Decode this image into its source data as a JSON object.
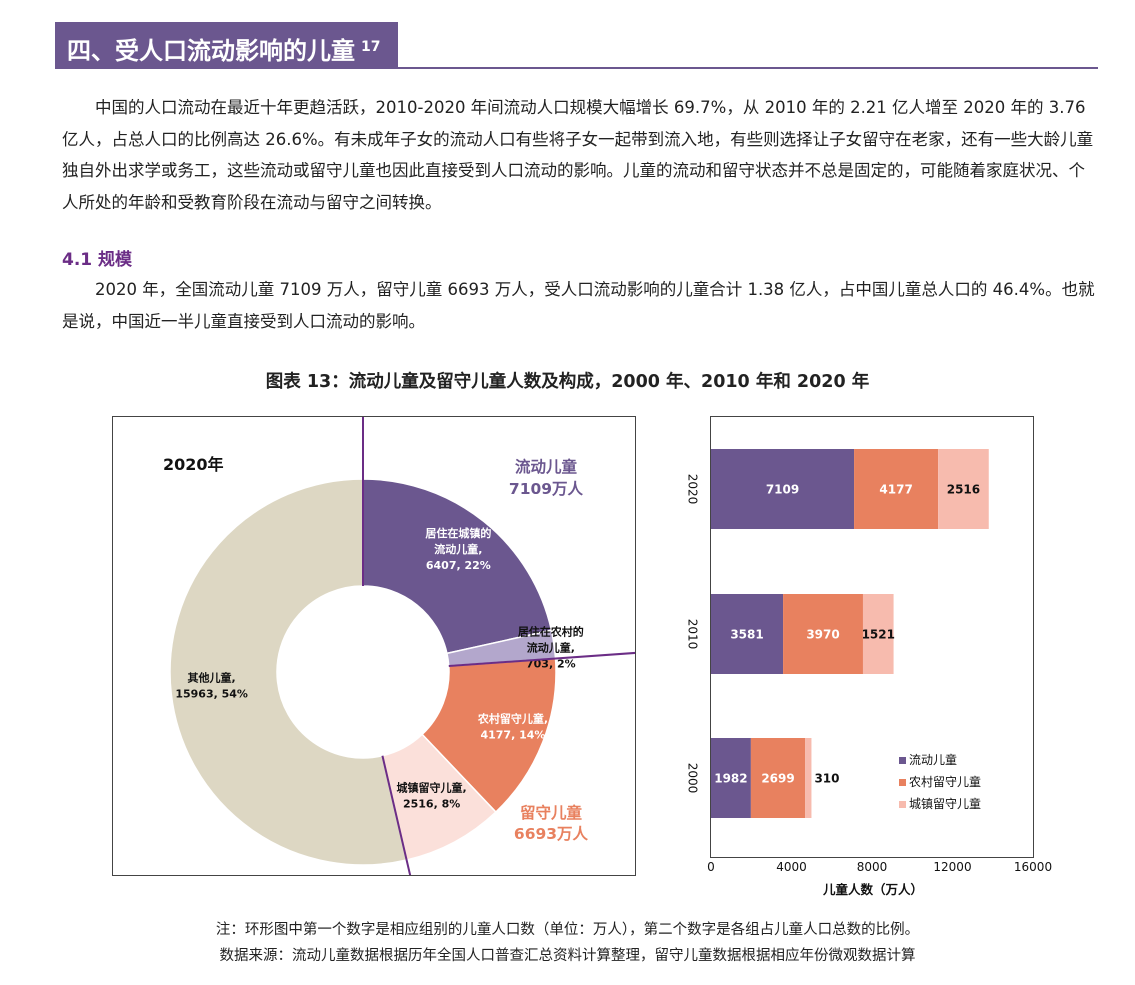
{
  "header": {
    "title": "四、受人口流动影响的儿童",
    "note_num": "17"
  },
  "intro": "中国的人口流动在最近十年更趋活跃，2010-2020 年间流动人口规模大幅增长 69.7%，从 2010 年的 2.21 亿人增至 2020 年的 3.76 亿人，占总人口的比例高达 26.6%。有未成年子女的流动人口有些将子女一起带到流入地，有些则选择让子女留守在老家，还有一些大龄儿童独自外出求学或务工，这些流动或留守儿童也因此直接受到人口流动的影响。儿童的流动和留守状态并不总是固定的，可能随着家庭状况、个人所处的年龄和受教育阶段在流动与留守之间转换。",
  "subsection": "4.1 规模",
  "scale_text": "2020 年，全国流动儿童 7109 万人，留守儿童 6693 万人，受人口流动影响的儿童合计 1.38 亿人，占中国儿童总人口的 46.4%。也就是说，中国近一半儿童直接受到人口流动的影响。",
  "figure_title": "图表 13：流动儿童及留守儿童人数及构成，2000 年、2010 年和 2020 年",
  "notes": {
    "note": "注：环形图中第一个数字是相应组别的儿童人口数（单位：万人），第二个数字是各组占儿童人口总数的比例。",
    "source": "数据来源：流动儿童数据根据历年全国人口普查汇总资料计算整理，留守儿童数据根据相应年份微观数据计算"
  },
  "colors": {
    "purple": "#6b578f",
    "lavender": "#b3a7cc",
    "orange": "#e8815f",
    "pink": "#f7bbae",
    "lightpink": "#fbe0da",
    "beige": "#ddd7c3",
    "title_purple": "#6b2d86"
  },
  "chart_data": [
    {
      "type": "pie",
      "subtype": "donut",
      "title": "2020年",
      "group_labels": [
        {
          "name": "流动儿童",
          "value_text": "7109万人",
          "color": "#6b578f"
        },
        {
          "name": "留守儿童",
          "value_text": "6693万人",
          "color": "#e8815f"
        }
      ],
      "slices": [
        {
          "label_l1": "居住在城镇的",
          "label_l2": "流动儿童,",
          "label_l3": "6407, 22%",
          "value": 6407,
          "pct": 22,
          "color": "#6b578f",
          "text_color": "#ffffff"
        },
        {
          "label_l1": "居住在农村的",
          "label_l2": "流动儿童,",
          "label_l3": "703, 2%",
          "value": 703,
          "pct": 2,
          "color": "#b3a7cc",
          "text_color": "#111111"
        },
        {
          "label_l1": "农村留守儿童,",
          "label_l2": "4177, 14%",
          "value": 4177,
          "pct": 14,
          "color": "#e8815f",
          "text_color": "#ffffff"
        },
        {
          "label_l1": "城镇留守儿童,",
          "label_l2": "2516, 8%",
          "value": 2516,
          "pct": 8,
          "color": "#fbe0da",
          "text_color": "#111111"
        },
        {
          "label_l1": "其他儿童,",
          "label_l2": "15963, 54%",
          "value": 15963,
          "pct": 54,
          "color": "#ddd7c3",
          "text_color": "#111111"
        }
      ]
    },
    {
      "type": "bar",
      "orientation": "horizontal",
      "stacked": true,
      "categories": [
        "2020",
        "2010",
        "2000"
      ],
      "series": [
        {
          "name": "流动儿童",
          "values": [
            7109,
            3581,
            1982
          ],
          "color": "#6b578f"
        },
        {
          "name": "农村留守儿童",
          "values": [
            4177,
            3970,
            2699
          ],
          "color": "#e8815f"
        },
        {
          "name": "城镇留守儿童",
          "values": [
            2516,
            1521,
            310
          ],
          "color": "#f7bbae"
        }
      ],
      "xlabel": "儿童人数（万人）",
      "xlim": [
        0,
        16000
      ],
      "xticks": [
        0,
        4000,
        8000,
        12000,
        16000
      ],
      "legend_position": "bottom-right"
    }
  ]
}
